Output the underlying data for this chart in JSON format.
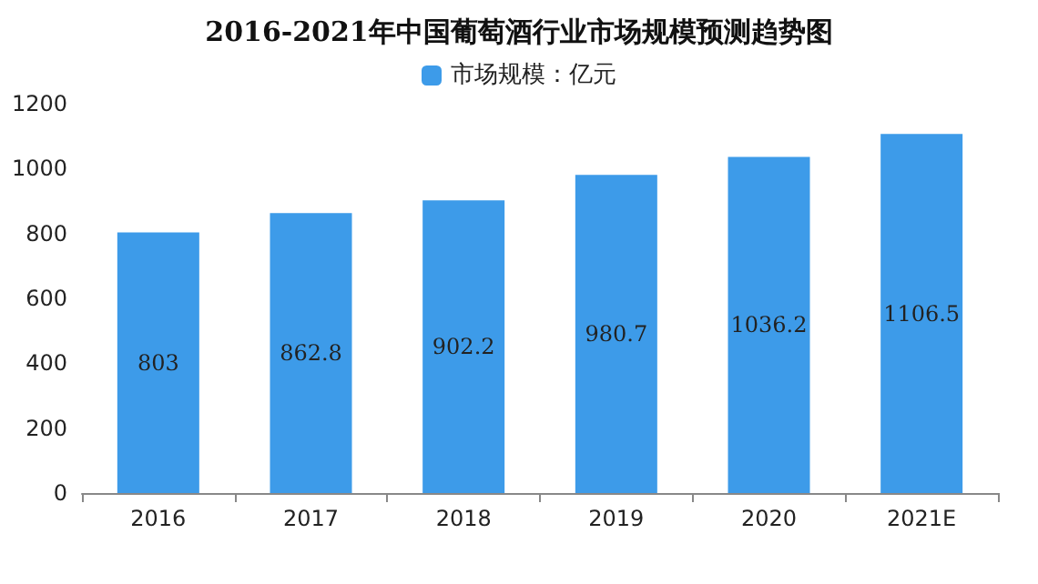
{
  "chart_data": {
    "type": "bar",
    "title": "2016-2021年中国葡萄酒行业市场规模预测趋势图",
    "categories": [
      "2016",
      "2017",
      "2018",
      "2019",
      "2020",
      "2021E"
    ],
    "series": [
      {
        "name": "市场规模：亿元",
        "color": "#3d9be9",
        "values": [
          803,
          862.8,
          902.2,
          980.7,
          1036.2,
          1106.5
        ]
      }
    ],
    "ylim": [
      0,
      1200
    ],
    "yticks": [
      0,
      200,
      400,
      600,
      800,
      1000,
      1200
    ],
    "grid": false,
    "legend": "top",
    "data_labels": true
  }
}
